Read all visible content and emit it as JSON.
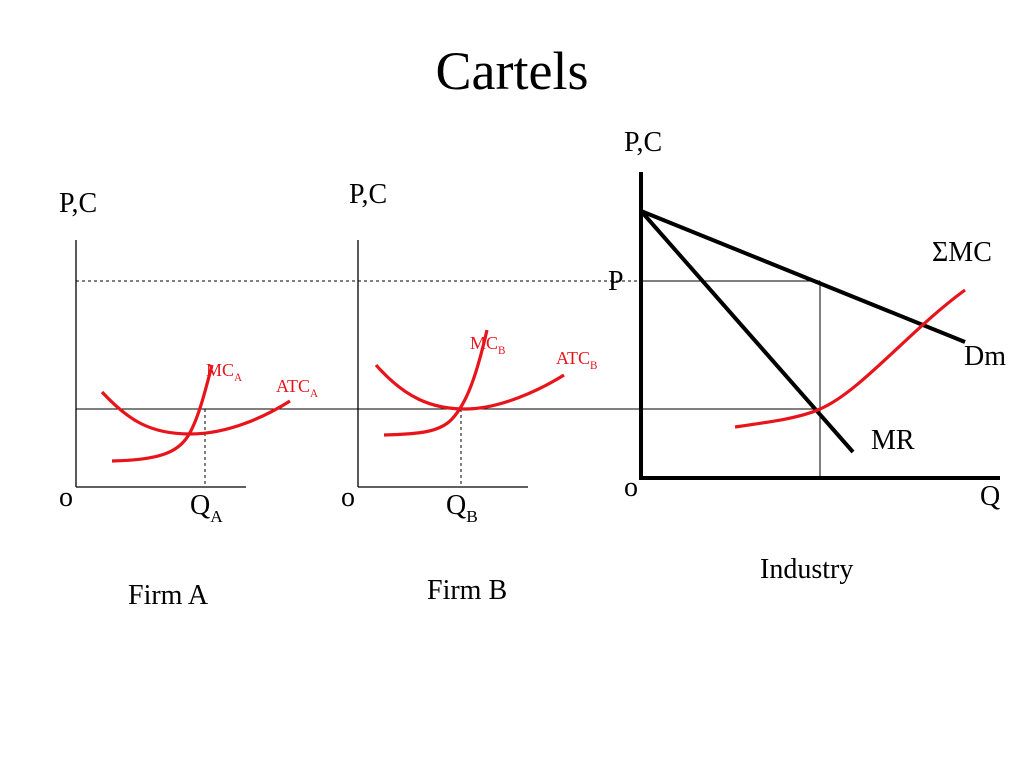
{
  "title": "Cartels",
  "firm_a": {
    "axis_y": "P,C",
    "origin": "o",
    "q_main": "Q",
    "q_sub": "A",
    "mc_main": "MC",
    "mc_sub": "A",
    "atc_main": "ATC",
    "atc_sub": "A",
    "caption": "Firm A"
  },
  "firm_b": {
    "axis_y": "P,C",
    "origin": "o",
    "q_main": "Q",
    "q_sub": "B",
    "mc_main": "MC",
    "mc_sub": "B",
    "atc_main": "ATC",
    "atc_sub": "B",
    "caption": "Firm B"
  },
  "industry": {
    "axis_y": "P,C",
    "axis_x": "Q",
    "origin": "o",
    "price": "P",
    "sum_mc": "ΣMC",
    "demand": "Dm",
    "mr": "MR",
    "caption": "Industry"
  },
  "colors": {
    "curve_red": "#e8141b",
    "axis": "#000000"
  }
}
